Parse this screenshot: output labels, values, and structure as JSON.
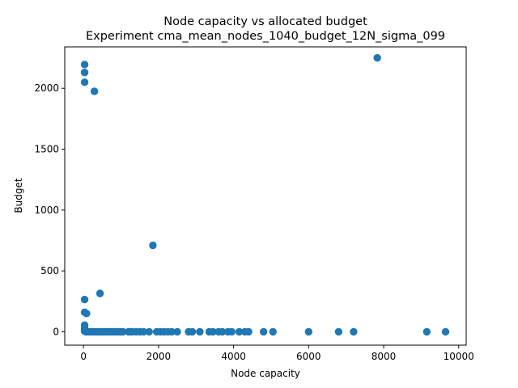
{
  "chart_data": {
    "type": "scatter",
    "title": "Node capacity vs allocated budget",
    "subtitle": "Experiment cma_mean_nodes_1040_budget_12N_sigma_099",
    "xlabel": "Node capacity",
    "ylabel": "Budget",
    "xlim": [
      -500,
      10200
    ],
    "ylim": [
      -110,
      2340
    ],
    "xticks": [
      0,
      2000,
      4000,
      6000,
      8000,
      10000
    ],
    "yticks": [
      0,
      500,
      1000,
      1500,
      2000
    ],
    "grid": false,
    "marker_color": "#1f77b4",
    "series": [
      {
        "points": [
          [
            30,
            2195
          ],
          [
            30,
            2130
          ],
          [
            30,
            2050
          ],
          [
            290,
            1975
          ],
          [
            7830,
            2250
          ],
          [
            1850,
            710
          ],
          [
            440,
            315
          ],
          [
            30,
            265
          ],
          [
            30,
            160
          ],
          [
            80,
            150
          ],
          [
            30,
            55
          ],
          [
            30,
            30
          ],
          [
            30,
            15
          ],
          [
            30,
            5
          ],
          [
            60,
            0
          ],
          [
            100,
            0
          ],
          [
            150,
            0
          ],
          [
            200,
            0
          ],
          [
            250,
            0
          ],
          [
            300,
            0
          ],
          [
            350,
            0
          ],
          [
            400,
            0
          ],
          [
            450,
            0
          ],
          [
            500,
            0
          ],
          [
            550,
            0
          ],
          [
            600,
            0
          ],
          [
            650,
            0
          ],
          [
            700,
            0
          ],
          [
            750,
            0
          ],
          [
            800,
            0
          ],
          [
            850,
            0
          ],
          [
            900,
            0
          ],
          [
            950,
            0
          ],
          [
            1000,
            0
          ],
          [
            1050,
            0
          ],
          [
            1200,
            0
          ],
          [
            1250,
            0
          ],
          [
            1300,
            0
          ],
          [
            1400,
            0
          ],
          [
            1500,
            0
          ],
          [
            1600,
            0
          ],
          [
            1750,
            0
          ],
          [
            1950,
            0
          ],
          [
            2050,
            0
          ],
          [
            2150,
            0
          ],
          [
            2250,
            0
          ],
          [
            2350,
            0
          ],
          [
            2500,
            0
          ],
          [
            2800,
            0
          ],
          [
            2900,
            0
          ],
          [
            3100,
            0
          ],
          [
            3350,
            0
          ],
          [
            3450,
            0
          ],
          [
            3600,
            0
          ],
          [
            3700,
            0
          ],
          [
            3850,
            0
          ],
          [
            3950,
            0
          ],
          [
            4150,
            0
          ],
          [
            4300,
            0
          ],
          [
            4400,
            0
          ],
          [
            4800,
            0
          ],
          [
            5050,
            0
          ],
          [
            6000,
            0
          ],
          [
            6800,
            0
          ],
          [
            7200,
            0
          ],
          [
            9150,
            0
          ],
          [
            9650,
            0
          ]
        ]
      }
    ]
  }
}
